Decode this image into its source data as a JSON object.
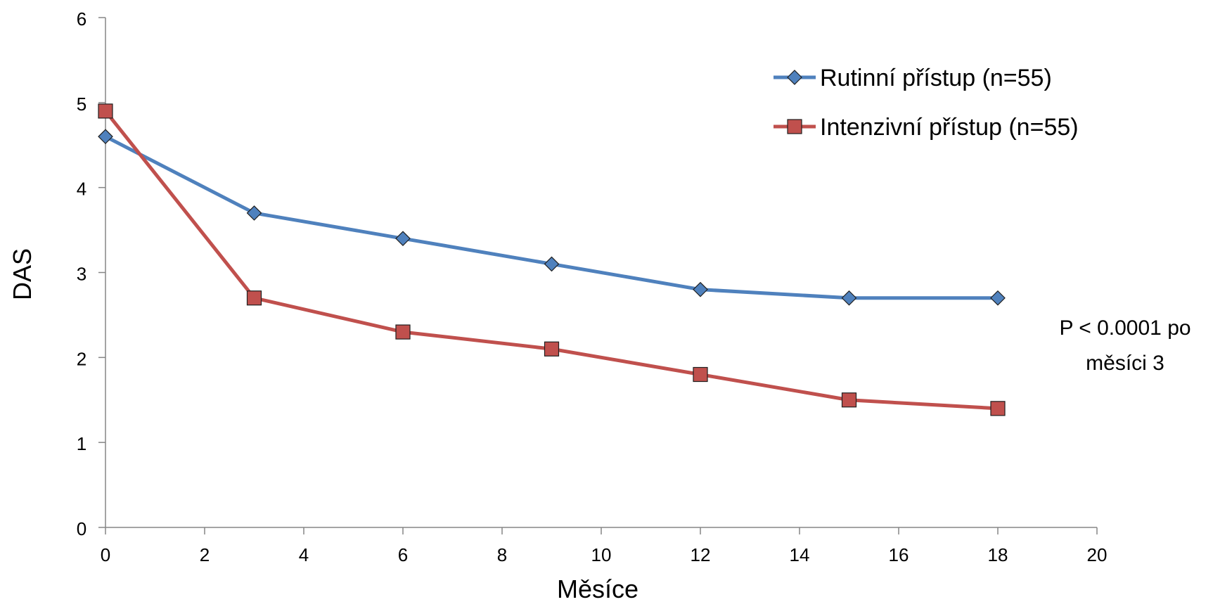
{
  "chart_data": {
    "type": "line",
    "title": "",
    "xlabel": "Měsíce",
    "ylabel": "DAS",
    "xlim": [
      0,
      20
    ],
    "ylim": [
      0,
      6
    ],
    "x_ticks": [
      "0",
      "2",
      "4",
      "6",
      "8",
      "10",
      "12",
      "14",
      "16",
      "18",
      "20"
    ],
    "y_ticks": [
      "0",
      "1",
      "2",
      "3",
      "4",
      "5",
      "6"
    ],
    "grid": false,
    "legend_position": "top-right",
    "annotation": [
      "P < 0.0001 po",
      "měsíci 3"
    ],
    "x": [
      0,
      3,
      6,
      9,
      12,
      15,
      18
    ],
    "series": [
      {
        "name": "Rutinní přístup (n=55)",
        "values": [
          4.6,
          3.7,
          3.4,
          3.1,
          2.8,
          2.7,
          2.7
        ],
        "color": "#4F81BD",
        "marker": "diamond"
      },
      {
        "name": "Intenzivní přístup (n=55)",
        "values": [
          4.9,
          2.7,
          2.3,
          2.1,
          1.8,
          1.5,
          1.4
        ],
        "color": "#C0504D",
        "marker": "square"
      }
    ]
  }
}
